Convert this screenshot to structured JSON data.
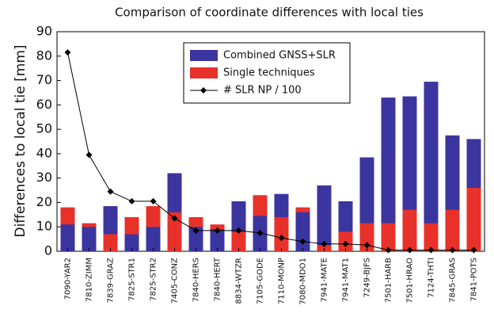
{
  "chart_data": {
    "type": "bar",
    "title": "Comparison of coordinate differences with local ties",
    "ylabel": "Differences to local tie [mm]",
    "categories": [
      "7090-YAR2",
      "7810-ZIMM",
      "7839-GRAZ",
      "7825-STR1",
      "7825-STR2",
      "7405-CONZ",
      "7840-HERS",
      "7840-HERT",
      "8834-WTZR",
      "7105-GODE",
      "7110-MONP",
      "7080-MDO1",
      "7941-MATE",
      "7941-MAT1",
      "7249-BJFS",
      "7501-HARB",
      "7501-HRAO",
      "7124-THTI",
      "7845-GRAS",
      "7841-POTS"
    ],
    "series": [
      {
        "name": "Combined GNSS+SLR",
        "color": "#3b35a0",
        "values": [
          11,
          10,
          18.5,
          7,
          10,
          32,
          10,
          9,
          20.5,
          14.5,
          23.5,
          16,
          27,
          20.5,
          38.5,
          63,
          63.5,
          69.5,
          47.5,
          46
        ]
      },
      {
        "name": "Single techniques",
        "color": "#e8312a",
        "values": [
          18,
          11.5,
          7,
          14,
          18.5,
          16,
          14,
          11,
          8,
          23,
          14,
          18,
          2.5,
          8,
          11.5,
          11.5,
          17,
          11.5,
          17,
          26
        ]
      },
      {
        "name": "# SLR NP / 100",
        "color": "#000000",
        "type": "line",
        "values": [
          81.5,
          39.5,
          24.5,
          20.5,
          20.5,
          13.5,
          8.5,
          8.5,
          8.5,
          7.5,
          5.5,
          4,
          3,
          3,
          2.5,
          0.5,
          0.5,
          0.5,
          0.5,
          0.5
        ]
      }
    ],
    "ylim": [
      0,
      90
    ],
    "yticks": [
      0,
      10,
      20,
      30,
      40,
      50,
      60,
      70,
      80,
      90
    ]
  }
}
